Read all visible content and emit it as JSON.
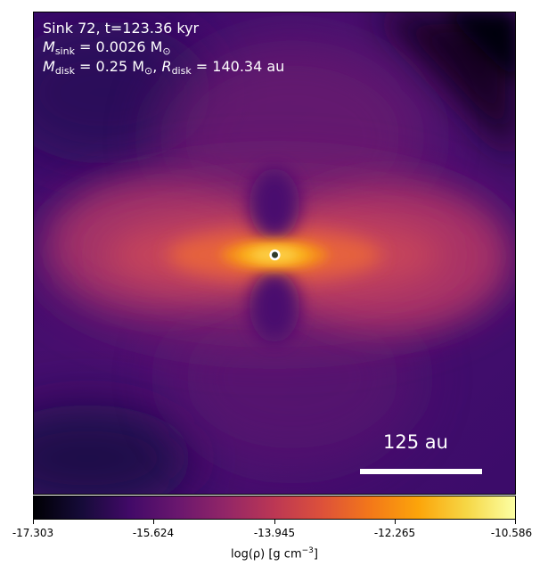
{
  "annotation": {
    "line1": "Sink 72, t=123.36 kyr",
    "msink_symbol": "M",
    "msink_sub": "sink",
    "msink_value": " = 0.0026 M",
    "msink_unit_sub": "⊙",
    "mdisk_symbol": "M",
    "mdisk_sub": "disk",
    "mdisk_value": " = 0.25 M",
    "mdisk_unit_sub": "⊙",
    "rdisk_sep": ", ",
    "rdisk_symbol": "R",
    "rdisk_sub": "disk",
    "rdisk_value": " = 140.34 au"
  },
  "scale_bar": {
    "label": "125 au"
  },
  "colorbar": {
    "ticks": [
      "-17.303",
      "-15.624",
      "-13.945",
      "-12.265",
      "-10.586"
    ],
    "label_prefix": "log(ρ) [g cm",
    "label_exp": "−3",
    "label_suffix": "]",
    "colormap": "inferno"
  },
  "colors": {
    "background_field": "#3a0c6b",
    "disk_core": "#fcd34d",
    "sink_marker_fill": "#2f3b2b",
    "sink_marker_edge": "#ffffff"
  }
}
